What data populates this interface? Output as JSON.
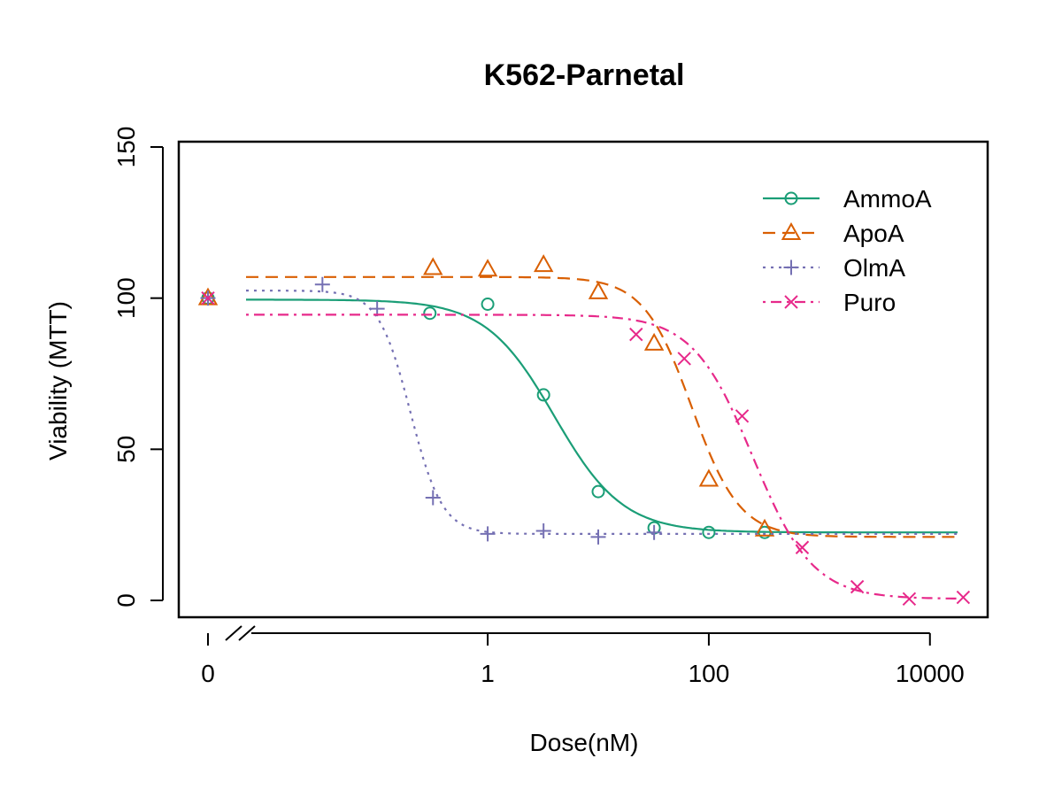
{
  "chart_data": {
    "type": "line",
    "title": "K562-Parnetal",
    "xlabel": "Dose(nM)",
    "ylabel": "Viability (MTT)",
    "x_scale": "log",
    "x_has_zero_break": true,
    "x_ticks": [
      {
        "value": 0,
        "label": "0"
      },
      {
        "value": 1,
        "label": "1"
      },
      {
        "value": 100,
        "label": "100"
      },
      {
        "value": 10000,
        "label": "10000"
      }
    ],
    "y_ticks": [
      0,
      50,
      100,
      150
    ],
    "ylim": [
      -5,
      150
    ],
    "xlim_log10": [
      -2.25,
      4.25
    ],
    "legend_position": "top-right",
    "colors": {
      "AmmoA": "#1b9e77",
      "ApoA": "#d95f02",
      "OlmA": "#7570b3",
      "Puro": "#e7298a"
    },
    "series": [
      {
        "name": "AmmoA",
        "marker": "circle",
        "line_style": "solid",
        "points": [
          {
            "x": 0,
            "y": 100
          },
          {
            "x": 0.3,
            "y": 95
          },
          {
            "x": 1,
            "y": 98
          },
          {
            "x": 3.2,
            "y": 68
          },
          {
            "x": 10,
            "y": 36
          },
          {
            "x": 32,
            "y": 24
          },
          {
            "x": 100,
            "y": 22.5
          },
          {
            "x": 320,
            "y": 22.5
          }
        ],
        "fit": {
          "top": 99.5,
          "bottom": 22.5,
          "ec50": 4.0,
          "hill": 1.4
        }
      },
      {
        "name": "ApoA",
        "marker": "triangle",
        "line_style": "dashed",
        "points": [
          {
            "x": 0,
            "y": 100
          },
          {
            "x": 0.32,
            "y": 110
          },
          {
            "x": 1,
            "y": 109.5
          },
          {
            "x": 3.2,
            "y": 111
          },
          {
            "x": 10,
            "y": 102
          },
          {
            "x": 32,
            "y": 85
          },
          {
            "x": 100,
            "y": 40
          },
          {
            "x": 320,
            "y": 23.5
          }
        ],
        "fit": {
          "top": 107,
          "bottom": 21,
          "ec50": 70,
          "hill": 2.0
        }
      },
      {
        "name": "OlmA",
        "marker": "plus",
        "line_style": "dotted",
        "points": [
          {
            "x": 0,
            "y": 100
          },
          {
            "x": 0.032,
            "y": 104.5
          },
          {
            "x": 0.1,
            "y": 96.5
          },
          {
            "x": 0.32,
            "y": 34
          },
          {
            "x": 1,
            "y": 22
          },
          {
            "x": 3.2,
            "y": 23
          },
          {
            "x": 10,
            "y": 21
          },
          {
            "x": 32,
            "y": 22.5
          }
        ],
        "fit": {
          "top": 102.5,
          "bottom": 22,
          "ec50": 0.2,
          "hill": 3.0
        }
      },
      {
        "name": "Puro",
        "marker": "cross",
        "line_style": "dotdash",
        "points": [
          {
            "x": 0,
            "y": 100
          },
          {
            "x": 22,
            "y": 88
          },
          {
            "x": 60,
            "y": 80
          },
          {
            "x": 200,
            "y": 61
          },
          {
            "x": 700,
            "y": 17.5
          },
          {
            "x": 2200,
            "y": 4.5
          },
          {
            "x": 6500,
            "y": 0.5
          },
          {
            "x": 20000,
            "y": 1
          }
        ],
        "fit": {
          "top": 94.5,
          "bottom": 0.5,
          "ec50": 250,
          "hill": 1.6
        }
      }
    ]
  }
}
